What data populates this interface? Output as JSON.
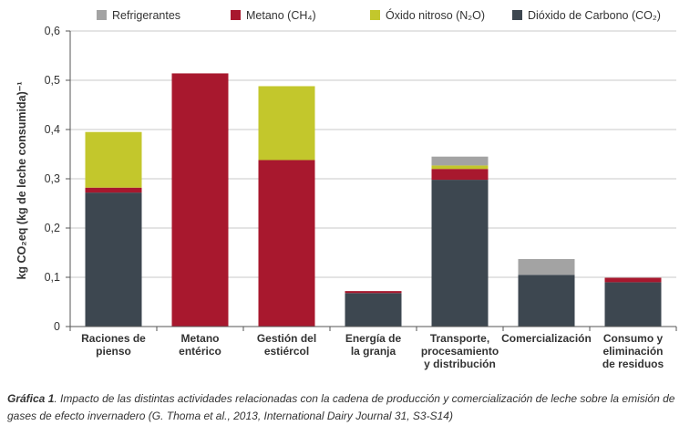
{
  "chart_data": {
    "type": "bar",
    "stacked": true,
    "categories": [
      [
        "Raciones de",
        "pienso"
      ],
      [
        "Metano",
        "entérico"
      ],
      [
        "Gestión del",
        "estiércol"
      ],
      [
        "Energía de",
        "la granja"
      ],
      [
        "Transporte,",
        "procesamiento",
        "y distribución"
      ],
      [
        "Comercialización"
      ],
      [
        "Consumo y",
        "eliminación",
        "de residuos"
      ]
    ],
    "series": [
      {
        "name": "Dióxido de Carbono (CO₂)",
        "color": "#3d4750",
        "values": [
          0.272,
          0,
          0,
          0.068,
          0.298,
          0.105,
          0.09
        ]
      },
      {
        "name": "Metano (CH₄)",
        "color": "#a8182e",
        "values": [
          0.01,
          0.514,
          0.338,
          0.004,
          0.022,
          0,
          0.009
        ]
      },
      {
        "name": "Óxido nitroso (N₂O)",
        "color": "#c3c72c",
        "values": [
          0.113,
          0,
          0.15,
          0,
          0.007,
          0,
          0
        ]
      },
      {
        "name": "Refrigerantes",
        "color": "#a3a3a3",
        "values": [
          0,
          0,
          0,
          0,
          0.018,
          0.032,
          0
        ]
      }
    ],
    "legend_order": [
      3,
      1,
      2,
      0
    ],
    "legend_position": "top",
    "ylabel": "kg CO₂eq (kg de leche consumida)⁻¹",
    "ylim": [
      0,
      0.6
    ],
    "yticks": [
      "0",
      "0,1",
      "0,2",
      "0,3",
      "0,4",
      "0,5",
      "0,6"
    ],
    "ytick_values": [
      0,
      0.1,
      0.2,
      0.3,
      0.4,
      0.5,
      0.6
    ],
    "grid": true
  },
  "caption": {
    "label": "Gráfica 1",
    "text": ". Impacto de las distintas actividades relacionadas con la cadena de producción y comercialización de leche sobre la emisión de gases de efecto invernadero (G. Thoma et al., 2013, International Dairy Journal 31, S3-S14)"
  }
}
